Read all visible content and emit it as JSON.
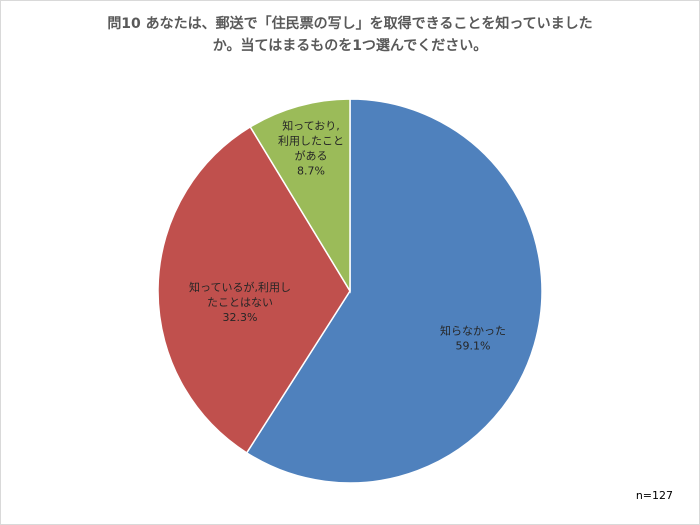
{
  "chart_data": {
    "type": "pie",
    "title_lines": [
      "問10  あなたは、郵送で「住民票の写し」を取得できることを知っていました",
      "か。当てはまるものを1つ選んでください。"
    ],
    "note": "n=127",
    "slices": [
      {
        "label_lines": [
          "知らなかった"
        ],
        "value": 59.1,
        "value_label": "59.1%",
        "color": "#4f81bd"
      },
      {
        "label_lines": [
          "知っているが,利用し",
          "たことはない"
        ],
        "value": 32.3,
        "value_label": "32.3%",
        "color": "#c0504d"
      },
      {
        "label_lines": [
          "知っており,",
          "利用したこと",
          "がある"
        ],
        "value": 8.7,
        "value_label": "8.7%",
        "color": "#9bbb59"
      }
    ]
  }
}
